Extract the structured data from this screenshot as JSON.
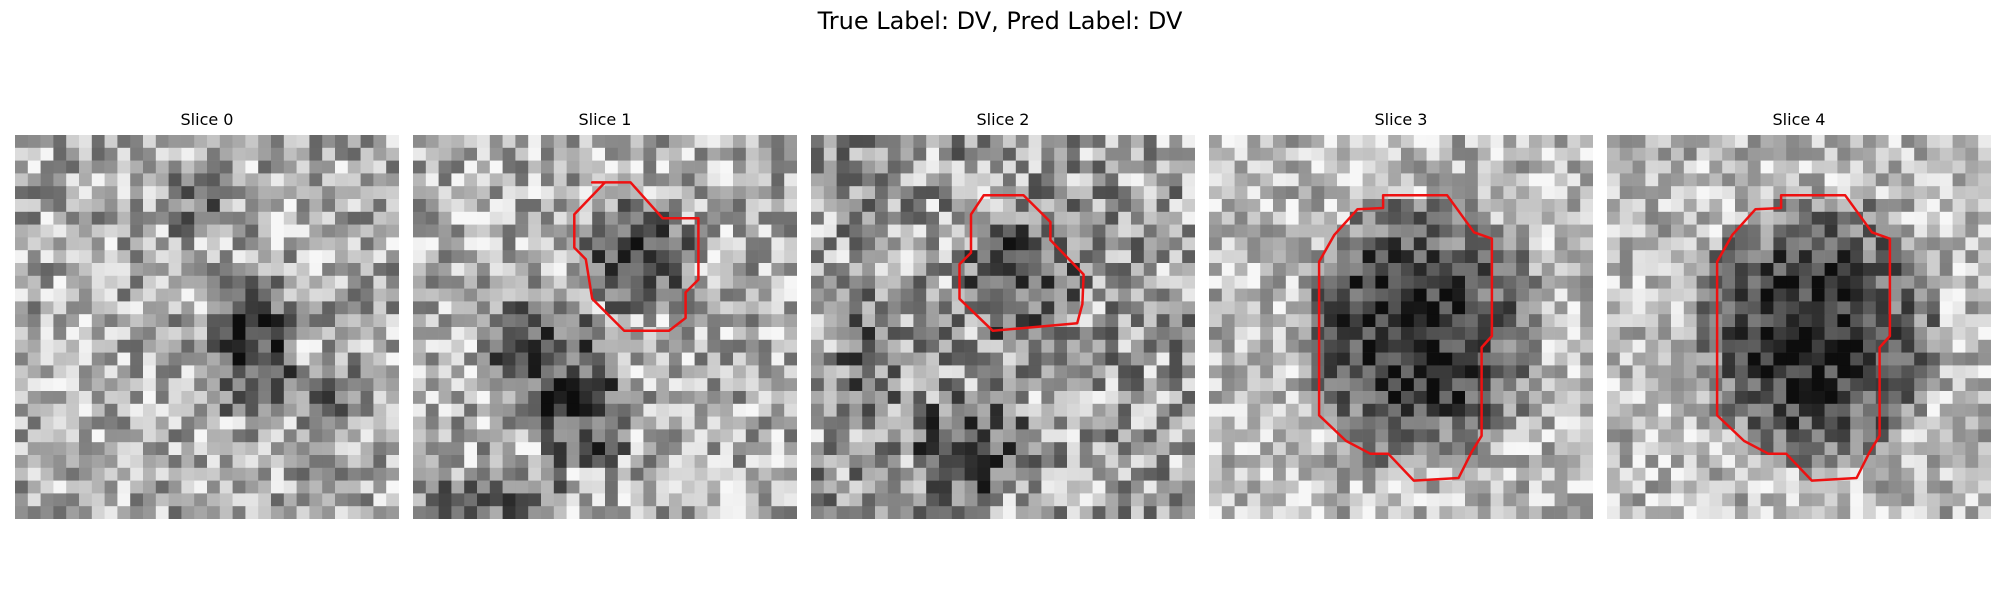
{
  "figure": {
    "suptitle": "True Label: DV, Pred Label: DV",
    "contour_color": "#ee1111"
  },
  "panels": [
    {
      "title": "Slice 0"
    },
    {
      "title": "Slice 1"
    },
    {
      "title": "Slice 2"
    },
    {
      "title": "Slice 3"
    },
    {
      "title": "Slice 4"
    }
  ]
}
